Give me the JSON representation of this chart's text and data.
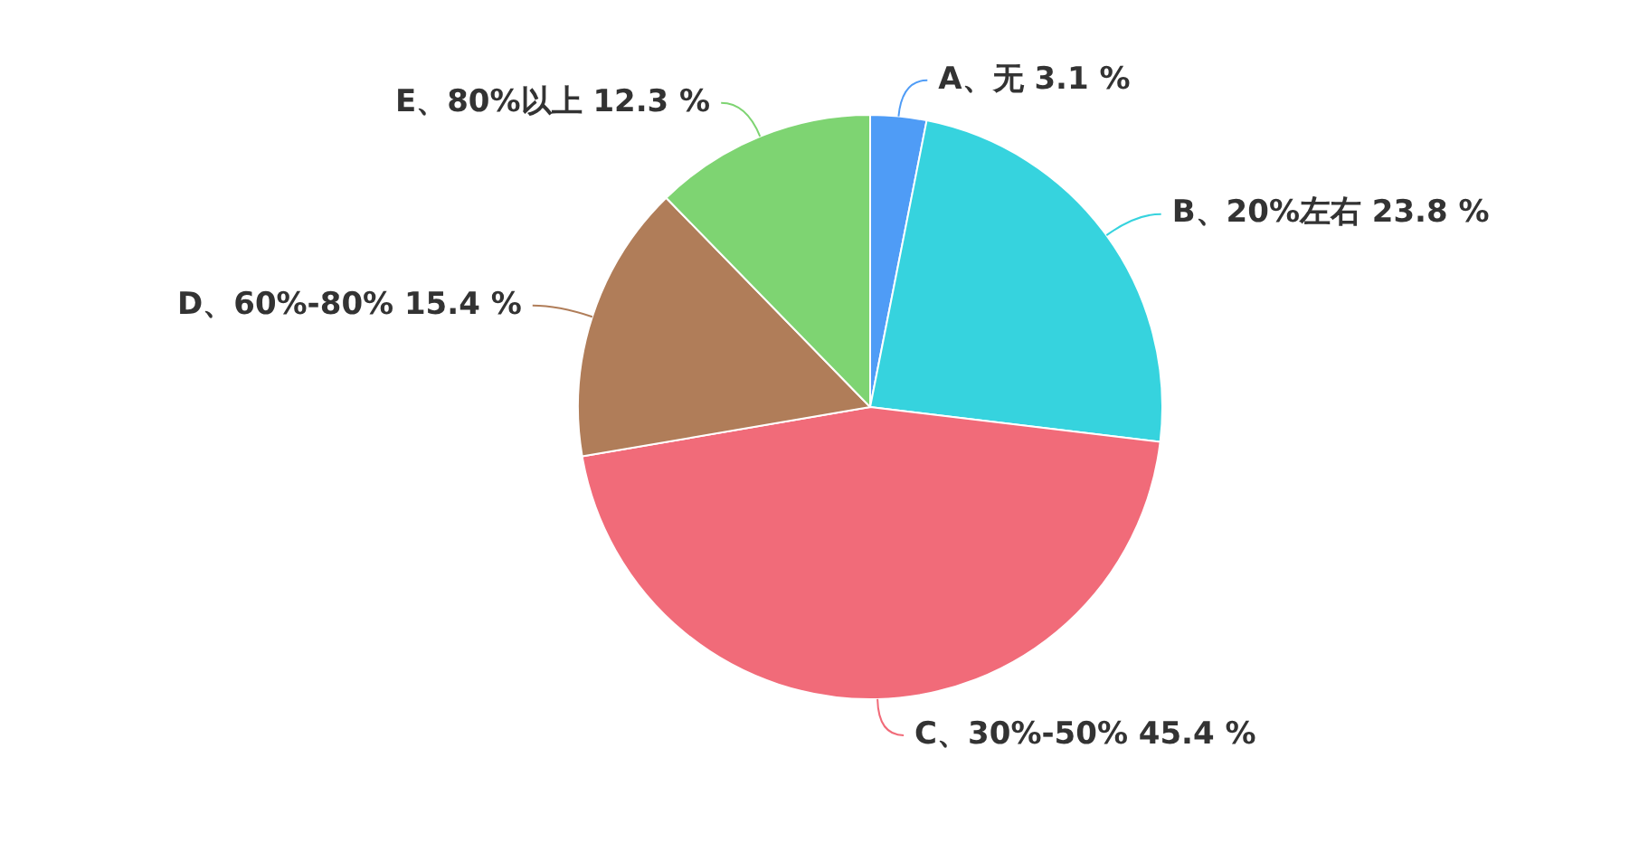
{
  "chart_data": {
    "type": "pie",
    "categories": [
      "A、无",
      "B、20%左右",
      "C、30%-50%",
      "D、60%-80%",
      "E、80%以上"
    ],
    "values": [
      3.1,
      23.8,
      45.4,
      15.4,
      12.3
    ],
    "value_labels": [
      "3.1 %",
      "23.8 %",
      "45.4 %",
      "15.4 %",
      "12.3 %"
    ],
    "colors": [
      "#4f9cf6",
      "#36d3de",
      "#f16b79",
      "#b07d59",
      "#7ed472"
    ],
    "legend": false
  }
}
